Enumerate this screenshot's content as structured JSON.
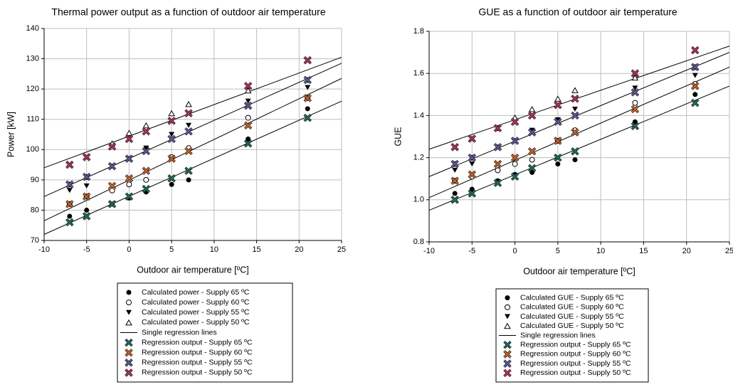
{
  "chart_data": [
    {
      "type": "scatter",
      "title": "Thermal power output as a function of outdoor air temperature",
      "x_label": "Outdoor air temperature [ºC]",
      "y_label": "Power [kW]",
      "xlim": [
        -10,
        25
      ],
      "xticks": [
        -10,
        -5,
        0,
        5,
        10,
        15,
        20,
        25
      ],
      "ylim": [
        70,
        140
      ],
      "yticks": [
        70,
        80,
        90,
        100,
        110,
        120,
        130,
        140
      ],
      "grid": true,
      "x": [
        -7,
        -5,
        -2,
        0,
        2,
        5,
        7,
        14,
        21
      ],
      "series": [
        {
          "name": "Calculated power - Supply 65 ºC",
          "marker": "circle-filled",
          "color": "#000000",
          "values": [
            78,
            80,
            82,
            84,
            86,
            88.5,
            90,
            103.5,
            113.5
          ]
        },
        {
          "name": "Calculated power - Supply 60 ºC",
          "marker": "circle-open",
          "color": "#000000",
          "values": [
            82,
            84.5,
            86.5,
            88.5,
            90,
            97.5,
            100.5,
            110.5,
            117
          ]
        },
        {
          "name": "Calculated power - Supply 55 ºC",
          "marker": "triangle-down",
          "color": "#000000",
          "values": [
            86.5,
            88,
            94.5,
            97,
            100.5,
            105,
            108,
            116,
            120.5
          ]
        },
        {
          "name": "Calculated power - Supply 50 ºC",
          "marker": "triangle-up-open",
          "color": "#000000",
          "values": [
            88.5,
            91,
            102,
            105.5,
            108,
            112,
            115,
            119.5,
            123
          ]
        },
        {
          "name": "Regression output - Supply 65 ºC",
          "marker": "x",
          "color": "#1f6b5e",
          "values": [
            76,
            78,
            82,
            84.5,
            87,
            90.5,
            93,
            102,
            110.5
          ]
        },
        {
          "name": "Regression output - Supply 60 ºC",
          "marker": "x",
          "color": "#c8642a",
          "values": [
            82,
            84.5,
            88,
            90.5,
            93,
            97,
            99.5,
            108,
            117
          ]
        },
        {
          "name": "Regression output - Supply 55 ºC",
          "marker": "x",
          "color": "#5a5a9a",
          "values": [
            88.5,
            91,
            94.5,
            97,
            99.5,
            103.5,
            106,
            114.5,
            123
          ]
        },
        {
          "name": "Regression output - Supply 50 ºC",
          "marker": "x",
          "color": "#b03060",
          "values": [
            95,
            97.5,
            101,
            103.5,
            106,
            109.5,
            112,
            121,
            129.5
          ]
        }
      ],
      "regression_lines": {
        "name": "Single regression lines",
        "color": "#000000",
        "x": [
          -10,
          25
        ],
        "values": [
          [
            72,
            116
          ],
          [
            76.5,
            123.5
          ],
          [
            84.5,
            128.5
          ],
          [
            94,
            130.5
          ]
        ]
      }
    },
    {
      "type": "scatter",
      "title": "GUE as a function of outdoor air temperature",
      "x_label": "Outdoor air temperature [ºC]",
      "y_label": "GUE",
      "xlim": [
        -10,
        25
      ],
      "xticks": [
        -10,
        -5,
        0,
        5,
        10,
        15,
        20,
        25
      ],
      "ylim": [
        0.8,
        1.8
      ],
      "yticks": [
        0.8,
        {
          "value": 1,
          "label": "1.0"
        },
        1.2,
        1.4,
        1.6,
        1.8
      ],
      "grid": true,
      "x": [
        -7,
        -5,
        -2,
        0,
        2,
        5,
        7,
        14,
        21
      ],
      "series": [
        {
          "name": "Calculated GUE - Supply 65 ºC",
          "marker": "circle-filled",
          "color": "#000000",
          "values": [
            1.03,
            1.05,
            1.09,
            1.12,
            1.13,
            1.17,
            1.19,
            1.37,
            1.5
          ]
        },
        {
          "name": "Calculated GUE - Supply 60 ºC",
          "marker": "circle-open",
          "color": "#000000",
          "values": [
            1.09,
            1.11,
            1.14,
            1.17,
            1.19,
            1.28,
            1.33,
            1.46,
            1.55
          ]
        },
        {
          "name": "Calculated GUE - Supply 55 ºC",
          "marker": "triangle-down",
          "color": "#000000",
          "values": [
            1.14,
            1.17,
            1.25,
            1.28,
            1.33,
            1.38,
            1.43,
            1.53,
            1.59
          ]
        },
        {
          "name": "Calculated GUE - Supply 50 ºC",
          "marker": "triangle-up-open",
          "color": "#000000",
          "values": [
            1.17,
            1.2,
            1.34,
            1.39,
            1.43,
            1.48,
            1.52,
            1.58,
            1.63
          ]
        },
        {
          "name": "Regression output - Supply 65 ºC",
          "marker": "x",
          "color": "#1f6b5e",
          "values": [
            1,
            1.03,
            1.08,
            1.11,
            1.15,
            1.2,
            1.23,
            1.35,
            1.46
          ]
        },
        {
          "name": "Regression output - Supply 60 ºC",
          "marker": "x",
          "color": "#c8642a",
          "values": [
            1.09,
            1.12,
            1.17,
            1.2,
            1.23,
            1.28,
            1.32,
            1.43,
            1.54
          ]
        },
        {
          "name": "Regression output - Supply 55 ºC",
          "marker": "x",
          "color": "#5a5a9a",
          "values": [
            1.17,
            1.2,
            1.25,
            1.28,
            1.32,
            1.37,
            1.4,
            1.51,
            1.63
          ]
        },
        {
          "name": "Regression output - Supply 50 ºC",
          "marker": "x",
          "color": "#b03060",
          "values": [
            1.25,
            1.29,
            1.34,
            1.37,
            1.4,
            1.45,
            1.48,
            1.6,
            1.71
          ]
        }
      ],
      "regression_lines": {
        "name": "Single regression lines",
        "color": "#000000",
        "x": [
          -10,
          25
        ],
        "values": [
          [
            0.95,
            1.54
          ],
          [
            1.01,
            1.63
          ],
          [
            1.11,
            1.7
          ],
          [
            1.24,
            1.73
          ]
        ]
      }
    }
  ]
}
